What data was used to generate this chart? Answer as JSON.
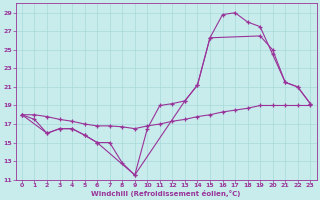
{
  "xlabel": "Windchill (Refroidissement éolien,°C)",
  "bg_color": "#c8ecec",
  "grid_color": "#a8d8d8",
  "line_color": "#993399",
  "xlim": [
    -0.5,
    23.5
  ],
  "ylim": [
    11,
    30
  ],
  "xticks": [
    0,
    1,
    2,
    3,
    4,
    5,
    6,
    7,
    8,
    9,
    10,
    11,
    12,
    13,
    14,
    15,
    16,
    17,
    18,
    19,
    20,
    21,
    22,
    23
  ],
  "yticks": [
    11,
    13,
    15,
    17,
    19,
    21,
    23,
    25,
    27,
    29
  ],
  "line1_x": [
    0,
    1,
    2,
    3,
    4,
    5,
    6,
    7,
    8,
    9,
    10,
    11,
    12,
    13,
    14,
    15,
    16,
    17,
    18,
    19,
    20,
    21,
    22,
    23
  ],
  "line1_y": [
    18.0,
    17.5,
    16.0,
    16.5,
    16.5,
    15.8,
    15.0,
    15.0,
    12.8,
    11.5,
    16.5,
    19.0,
    19.2,
    19.5,
    21.2,
    26.3,
    28.8,
    29.0,
    28.0,
    27.5,
    24.5,
    21.5,
    21.0,
    19.2
  ],
  "line2_x": [
    0,
    1,
    2,
    3,
    4,
    5,
    6,
    7,
    8,
    9,
    10,
    11,
    12,
    13,
    14,
    15,
    16,
    17,
    18,
    19,
    20,
    21,
    22,
    23
  ],
  "line2_y": [
    18.0,
    18.0,
    17.8,
    17.5,
    17.3,
    17.0,
    16.8,
    16.8,
    16.7,
    16.5,
    16.8,
    17.0,
    17.3,
    17.5,
    17.8,
    18.0,
    18.3,
    18.5,
    18.7,
    19.0,
    19.0,
    19.0,
    19.0,
    19.0
  ],
  "line3_x": [
    0,
    2,
    3,
    4,
    5,
    6,
    9,
    13,
    14,
    15,
    19,
    20,
    21,
    22,
    23
  ],
  "line3_y": [
    18.0,
    16.0,
    16.5,
    16.5,
    15.8,
    15.0,
    11.5,
    19.5,
    21.2,
    26.3,
    26.5,
    25.0,
    21.5,
    21.0,
    19.2
  ]
}
